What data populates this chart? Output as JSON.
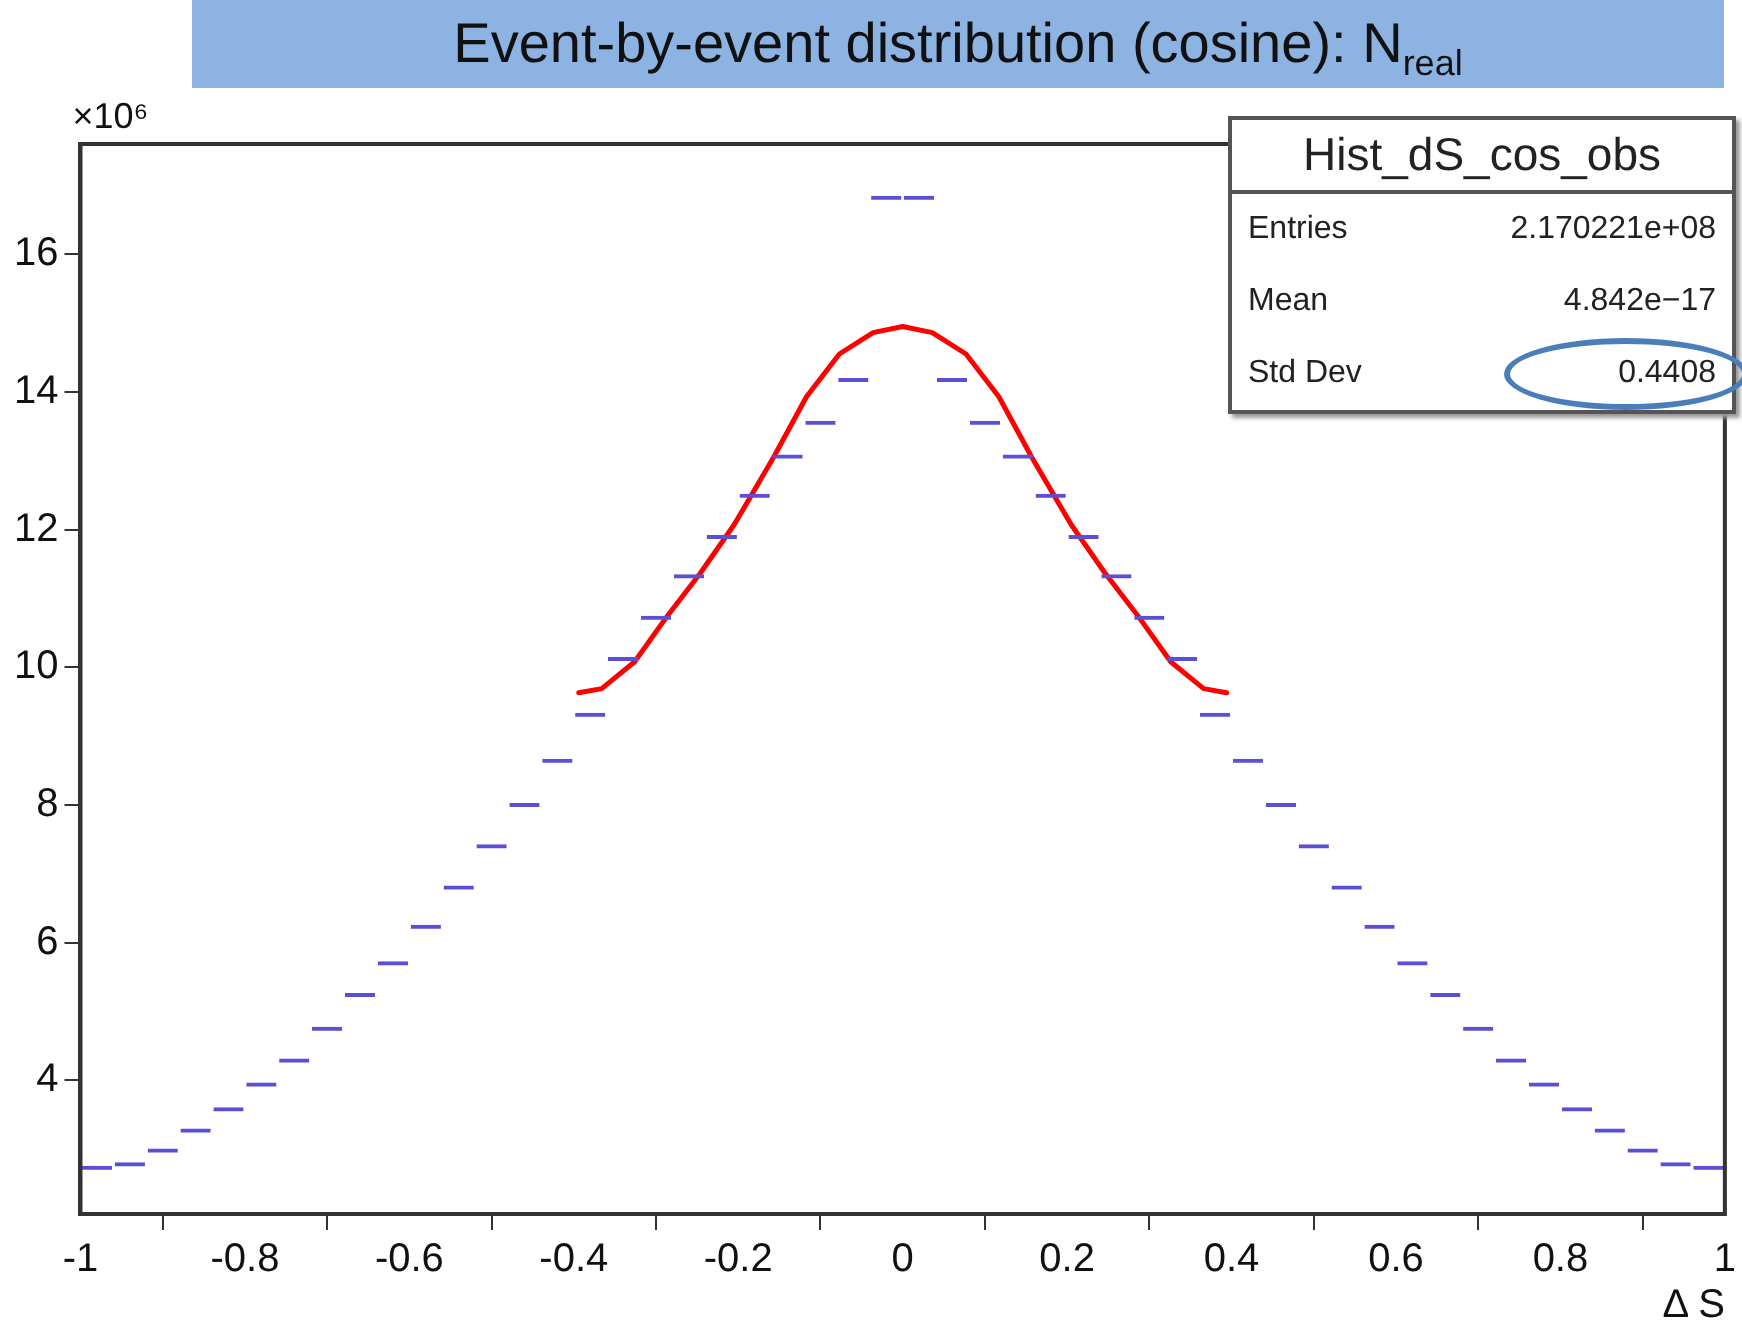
{
  "chart_data": {
    "type": "histogram",
    "title": "Event-by-event distribution (cosine): N$_{real}$",
    "xlabel": "Δ S",
    "annotations": [
      "×10⁶",
      "Hist_dS_cos_obs",
      "Entries",
      "2.170221e+08",
      "Mean",
      "4.842e−17",
      "Std Dev",
      "0.4408"
    ],
    "bins": [
      -1,
      -0.96,
      -0.92,
      -0.88,
      -0.84,
      -0.8,
      -0.76,
      -0.72,
      -0.68,
      -0.64,
      -0.6,
      -0.56,
      -0.52,
      -0.48,
      -0.44,
      -0.4,
      -0.36,
      -0.32,
      -0.28,
      -0.24,
      -0.2,
      -0.16,
      -0.12,
      -0.08,
      -0.04,
      0,
      0.04,
      0.08,
      0.12,
      0.16,
      0.2,
      0.24,
      0.28,
      0.32,
      0.36,
      0.4,
      0.44,
      0.48,
      0.52,
      0.56,
      0.6,
      0.64,
      0.68,
      0.72,
      0.76,
      0.8,
      0.84,
      0.88,
      0.92,
      0.96,
      1
    ],
    "series": [
      {
        "type": "histogram",
        "color": "#5a4fd6",
        "values": [
          2.76,
          2.81,
          3.01,
          3.3,
          3.61,
          3.97,
          4.32,
          4.78,
          5.27,
          5.73,
          6.26,
          6.83,
          7.43,
          8.03,
          8.67,
          9.34,
          10.15,
          10.75,
          11.35,
          11.92,
          12.52,
          13.09,
          13.58,
          14.2,
          16.85,
          16.85,
          14.2,
          13.58,
          13.09,
          12.52,
          11.92,
          11.35,
          10.75,
          10.15,
          9.34,
          8.67,
          8.03,
          7.43,
          6.83,
          6.26,
          5.73,
          5.27,
          4.78,
          4.32,
          3.97,
          3.61,
          3.3,
          3.01,
          2.81,
          2.76
        ]
      },
      {
        "type": "line",
        "color": "#ff0000",
        "x": [
          -0.394,
          -0.366,
          -0.326,
          -0.286,
          -0.246,
          -0.205,
          -0.157,
          -0.117,
          -0.077,
          -0.036,
          0,
          0.036,
          0.077,
          0.117,
          0.157,
          0.205,
          0.246,
          0.286,
          0.326,
          0.366,
          0.394
        ],
        "values": [
          9.63,
          9.69,
          10.08,
          10.75,
          11.37,
          12.07,
          13.05,
          13.93,
          14.55,
          14.86,
          14.95,
          14.86,
          14.55,
          13.93,
          13.05,
          12.07,
          11.37,
          10.75,
          10.08,
          9.69,
          9.63
        ]
      }
    ],
    "xlim": [
      -1,
      1
    ],
    "xticks": [
      -1,
      -0.8,
      -0.6,
      -0.4,
      -0.2,
      0,
      0.2,
      0.4,
      0.6,
      0.8,
      1
    ],
    "ylim": [
      2.06,
      17.6
    ],
    "yticks": [
      4,
      6,
      8,
      10,
      12,
      14,
      16
    ],
    "grid": false,
    "legend": false
  }
}
